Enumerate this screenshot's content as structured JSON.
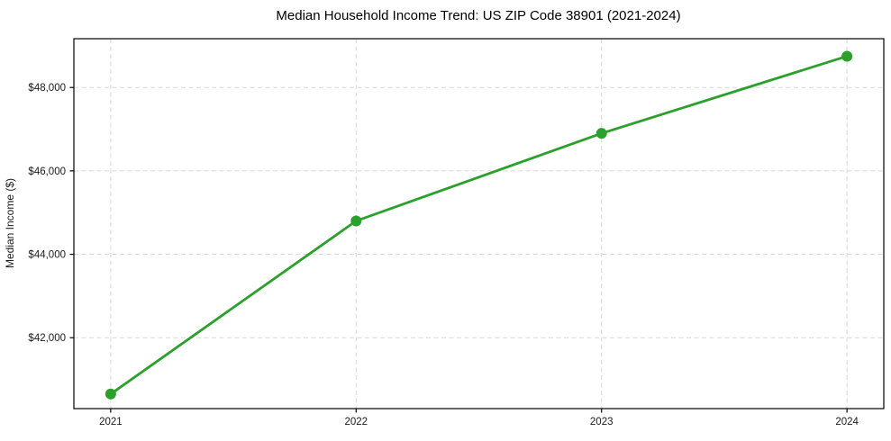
{
  "chart_data": {
    "type": "line",
    "title": "Median Household Income Trend: US ZIP Code 38901 (2021-2024)",
    "xlabel": "",
    "ylabel": "Median Income ($)",
    "x": [
      2021,
      2022,
      2023,
      2024
    ],
    "x_tick_labels": [
      "2021",
      "2022",
      "2023",
      "2024"
    ],
    "series": [
      {
        "name": "Median household income",
        "values": [
          40650,
          44800,
          46900,
          48750
        ]
      }
    ],
    "y_ticks": [
      42000,
      44000,
      46000,
      48000
    ],
    "y_tick_labels": [
      "$42,000",
      "$44,000",
      "$46,000",
      "$48,000"
    ],
    "xlim": [
      2020.85,
      2024.15
    ],
    "ylim": [
      40300,
      49170
    ],
    "grid": true,
    "grid_style": "dashed",
    "legend_position": "none",
    "colors": {
      "line": "#2ca02c",
      "marker": "#2ca02c",
      "grid": "#d8d8d8",
      "spine": "#000000",
      "tick": "#000000",
      "background": "#ffffff"
    },
    "line_width": 2.8,
    "marker_radius": 6
  }
}
